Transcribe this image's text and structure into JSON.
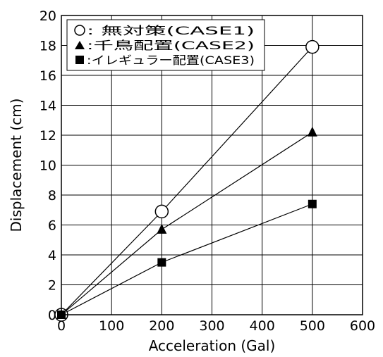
{
  "chart_data": {
    "type": "line",
    "title": "",
    "xlabel": "Acceleration (Gal)",
    "ylabel": "Displacement (cm)",
    "xlim": [
      0,
      600
    ],
    "ylim": [
      0,
      20
    ],
    "xticks": [
      0,
      100,
      200,
      300,
      400,
      500,
      600
    ],
    "yticks": [
      0,
      2,
      4,
      6,
      8,
      10,
      12,
      14,
      16,
      18,
      20
    ],
    "grid": true,
    "legend_position": "top-left",
    "series": [
      {
        "name": ": 無対策(CASE1)",
        "marker": "circle-open",
        "x": [
          0,
          200,
          500
        ],
        "y": [
          0,
          6.9,
          17.9
        ]
      },
      {
        "name": ":千鳥配置(CASE2)",
        "marker": "triangle-filled",
        "x": [
          0,
          200,
          500
        ],
        "y": [
          0,
          5.7,
          12.2
        ]
      },
      {
        "name": ":イレギュラー配置(CASE3)",
        "marker": "square-filled",
        "x": [
          0,
          200,
          500
        ],
        "y": [
          0,
          3.5,
          7.4
        ]
      }
    ]
  }
}
